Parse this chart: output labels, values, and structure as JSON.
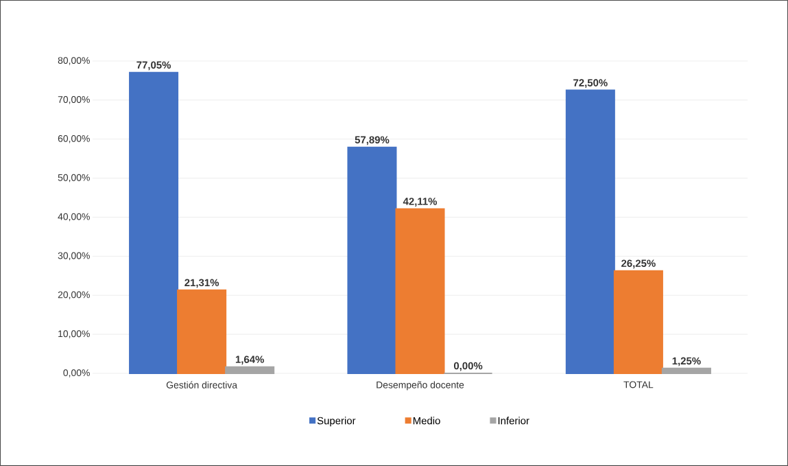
{
  "chart_data": {
    "type": "bar",
    "categories": [
      "Gestión directiva",
      "Desempeño docente",
      "TOTAL"
    ],
    "series": [
      {
        "name": "Superior",
        "color": "#4472c4",
        "values": [
          77.05,
          57.89,
          72.5
        ],
        "value_labels": [
          "77,05%",
          "57,89%",
          "72,50%"
        ]
      },
      {
        "name": "Medio",
        "color": "#ed7d31",
        "values": [
          21.31,
          42.11,
          26.25
        ],
        "value_labels": [
          "21,31%",
          "42,11%",
          "26,25%"
        ]
      },
      {
        "name": "Inferior",
        "color": "#a5a5a5",
        "values": [
          1.64,
          0,
          1.25
        ],
        "value_labels": [
          "1,64%",
          "0,00%",
          "1,25%"
        ]
      }
    ],
    "ylim": [
      0,
      80
    ],
    "yticks": [
      {
        "value": 0,
        "label": "0,00%"
      },
      {
        "value": 10,
        "label": "10,00%"
      },
      {
        "value": 20,
        "label": "20,00%"
      },
      {
        "value": 30,
        "label": "30,00%"
      },
      {
        "value": 40,
        "label": "40,00%"
      },
      {
        "value": 50,
        "label": "50,00%"
      },
      {
        "value": 60,
        "label": "60,00%"
      },
      {
        "value": 70,
        "label": "70,00%"
      },
      {
        "value": 80,
        "label": "80,00%"
      }
    ],
    "grid": "y",
    "legend": "bottom"
  }
}
